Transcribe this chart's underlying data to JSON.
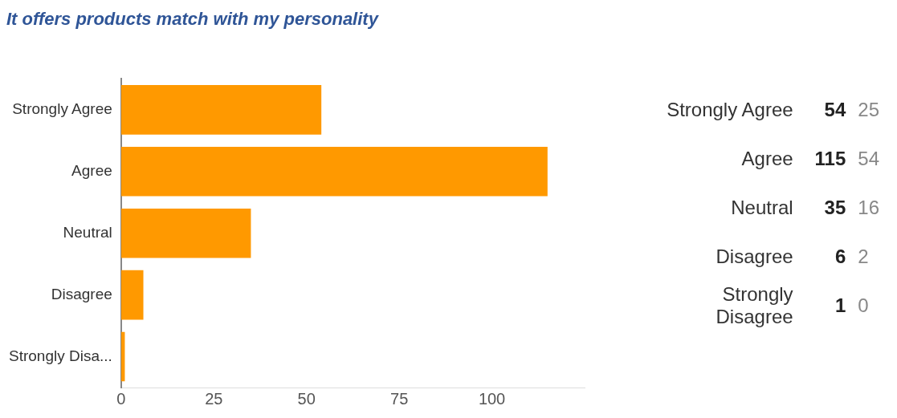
{
  "chart_data": [
    {
      "type": "bar",
      "orientation": "horizontal",
      "title": "It offers products match with my personality",
      "categories": [
        "Strongly Agree",
        "Agree",
        "Neutral",
        "Disagree",
        "Strongly Disa..."
      ],
      "values": [
        54,
        115,
        35,
        6,
        1
      ],
      "color": "#ff9900",
      "xlim": [
        0,
        125
      ],
      "xticks": [
        0,
        25,
        50,
        75,
        100
      ],
      "grid": false,
      "legend": false
    },
    {
      "type": "other",
      "categories": [
        "Strongly Agree",
        "Agree",
        "Neutral",
        "Disagree",
        "Strongly Disagree"
      ],
      "data_labels": true,
      "series": [
        {
          "values": [
            54,
            115,
            35,
            6,
            1
          ]
        },
        {
          "values": [
            25,
            54,
            16,
            2,
            0
          ]
        }
      ]
    }
  ]
}
